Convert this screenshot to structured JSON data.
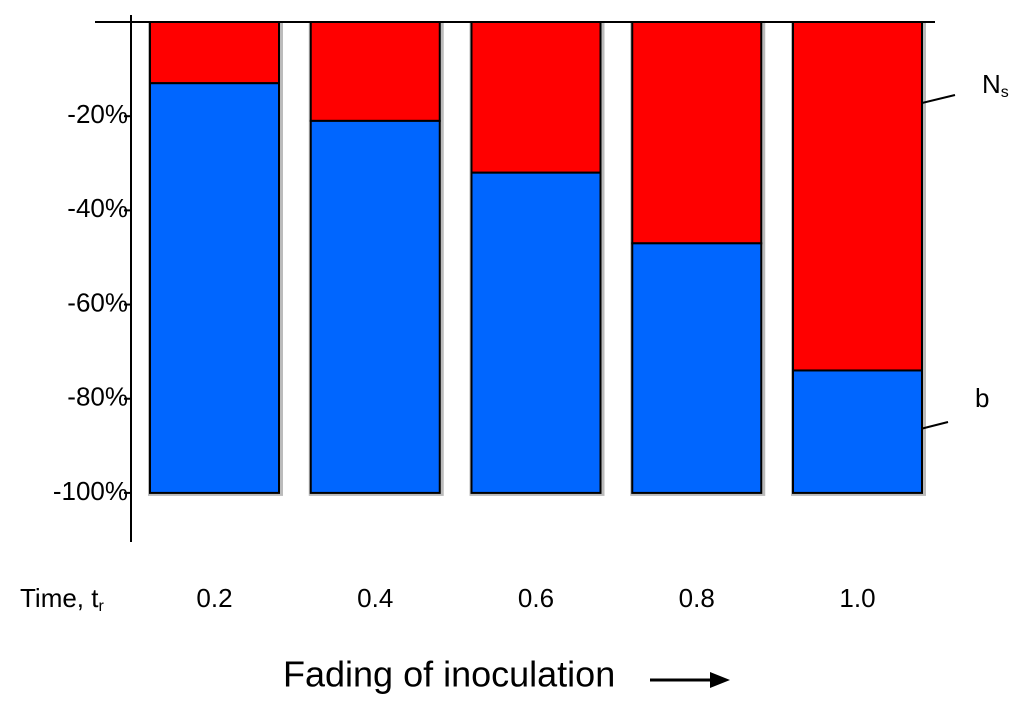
{
  "chart_data": {
    "type": "bar",
    "stacked": true,
    "categories": [
      "0.2",
      "0.4",
      "0.6",
      "0.8",
      "1.0"
    ],
    "xlabel": "Time, tr",
    "footer": "Fading of inoculation",
    "series": [
      {
        "name": "Ns",
        "color": "#ff0000",
        "values": [
          -13,
          -21,
          -32,
          -47,
          -74
        ]
      },
      {
        "name": "b",
        "color": "#0066ff",
        "values": [
          -87,
          -79,
          -68,
          -53,
          -26
        ]
      }
    ],
    "ylim": [
      -110,
      0
    ],
    "yticks": [
      {
        "value": -20,
        "label": "-20%"
      },
      {
        "value": -40,
        "label": "-40%"
      },
      {
        "value": -60,
        "label": "-60%"
      },
      {
        "value": -80,
        "label": "-80%"
      },
      {
        "value": -100,
        "label": "-100%"
      }
    ]
  }
}
